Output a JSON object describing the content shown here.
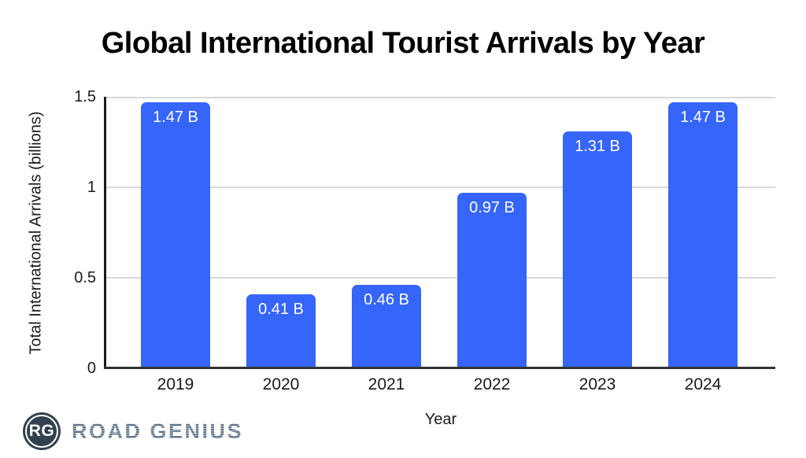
{
  "chart_data": {
    "type": "bar",
    "title": "Global International Tourist Arrivals by Year",
    "xlabel": "Year",
    "ylabel": "Total International Arrivals (billions)",
    "categories": [
      "2019",
      "2020",
      "2021",
      "2022",
      "2023",
      "2024"
    ],
    "values": [
      1.47,
      0.41,
      0.46,
      0.97,
      1.31,
      1.47
    ],
    "bar_labels": [
      "1.47 B",
      "0.41 B",
      "0.46 B",
      "0.97 B",
      "1.31 B",
      "1.47 B"
    ],
    "ylim": [
      0,
      1.5
    ],
    "yticks": [
      0,
      0.5,
      1,
      1.5
    ],
    "ytick_labels": [
      "0",
      "0.5",
      "1",
      "1.5"
    ],
    "grid": true,
    "legend": false,
    "bar_color": "#3565FA",
    "bar_label_color": "#ffffff",
    "gridline_color": "#d8d8d8",
    "axis_color": "#1a1a1a"
  },
  "branding": {
    "logo_monogram": "RG",
    "logo_text": "ROAD GENIUS",
    "logo_circle_color": "#32414e",
    "logo_text_color": "#6b7d8e"
  }
}
